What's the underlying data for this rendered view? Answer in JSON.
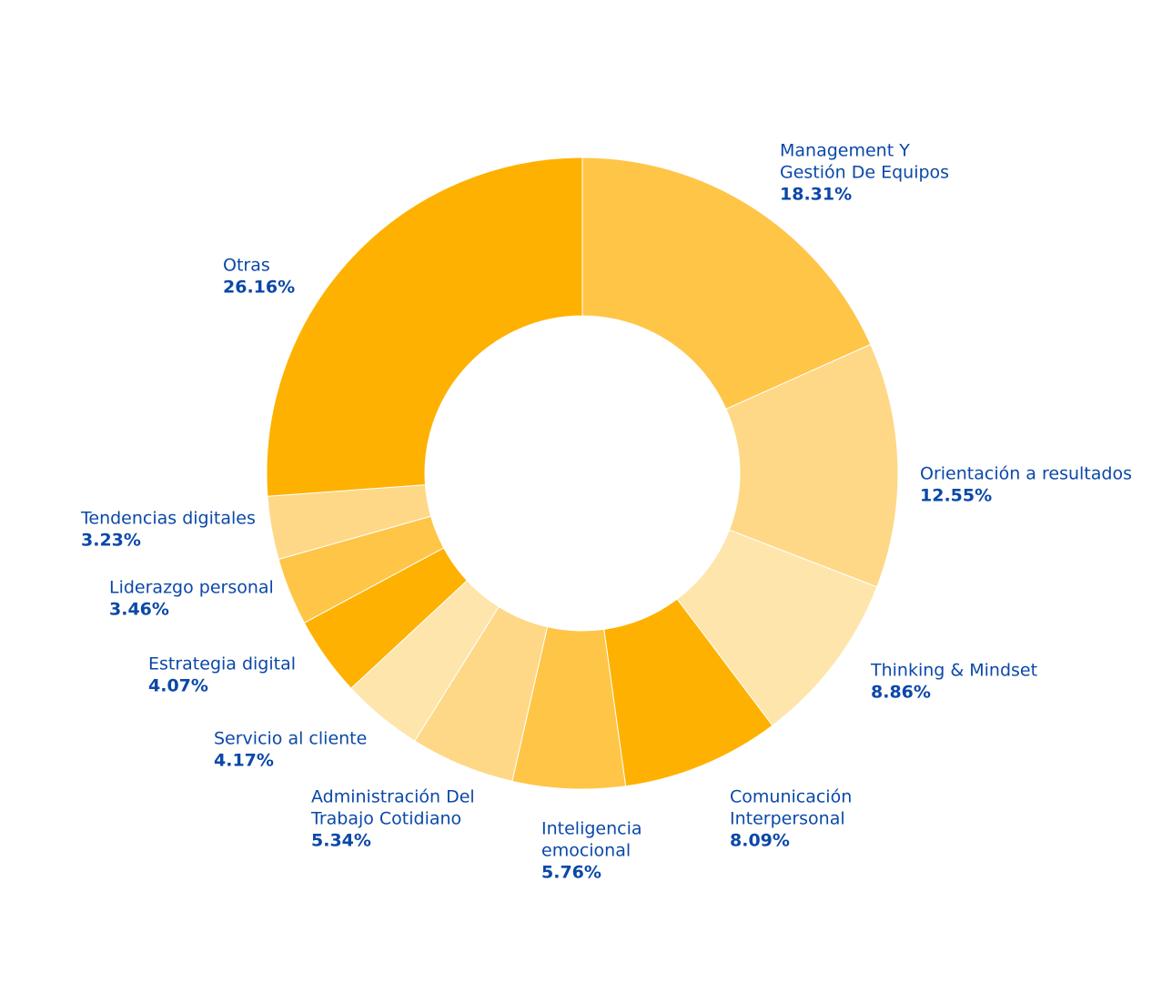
{
  "chart_data": {
    "type": "pie",
    "donut": true,
    "start": "top",
    "direction": "clockwise",
    "slices": [
      {
        "label": [
          "Management Y",
          "Gestión De Equipos"
        ],
        "value": 18.31,
        "display": "18.31%",
        "color": "#fec547"
      },
      {
        "label": [
          "Orientación a resultados"
        ],
        "value": 12.55,
        "display": "12.55%",
        "color": "#fed886"
      },
      {
        "label": [
          "Thinking & Mindset"
        ],
        "value": 8.86,
        "display": "8.86%",
        "color": "#fee5ab"
      },
      {
        "label": [
          "Comunicación",
          "Interpersonal"
        ],
        "value": 8.09,
        "display": "8.09%",
        "color": "#feb100"
      },
      {
        "label": [
          "Inteligencia",
          "emocional"
        ],
        "value": 5.76,
        "display": "5.76%",
        "color": "#fec547"
      },
      {
        "label": [
          "Administración Del",
          "Trabajo Cotidiano"
        ],
        "value": 5.34,
        "display": "5.34%",
        "color": "#fed886"
      },
      {
        "label": [
          "Servicio al cliente"
        ],
        "value": 4.17,
        "display": "4.17%",
        "color": "#fee5ab"
      },
      {
        "label": [
          "Estrategia digital"
        ],
        "value": 4.07,
        "display": "4.07%",
        "color": "#feb100"
      },
      {
        "label": [
          "Liderazgo personal"
        ],
        "value": 3.46,
        "display": "3.46%",
        "color": "#fec547"
      },
      {
        "label": [
          "Tendencias digitales"
        ],
        "value": 3.23,
        "display": "3.23%",
        "color": "#fed886"
      },
      {
        "label": [
          "Otras"
        ],
        "value": 26.16,
        "display": "26.16%",
        "color": "#feb100"
      }
    ]
  }
}
